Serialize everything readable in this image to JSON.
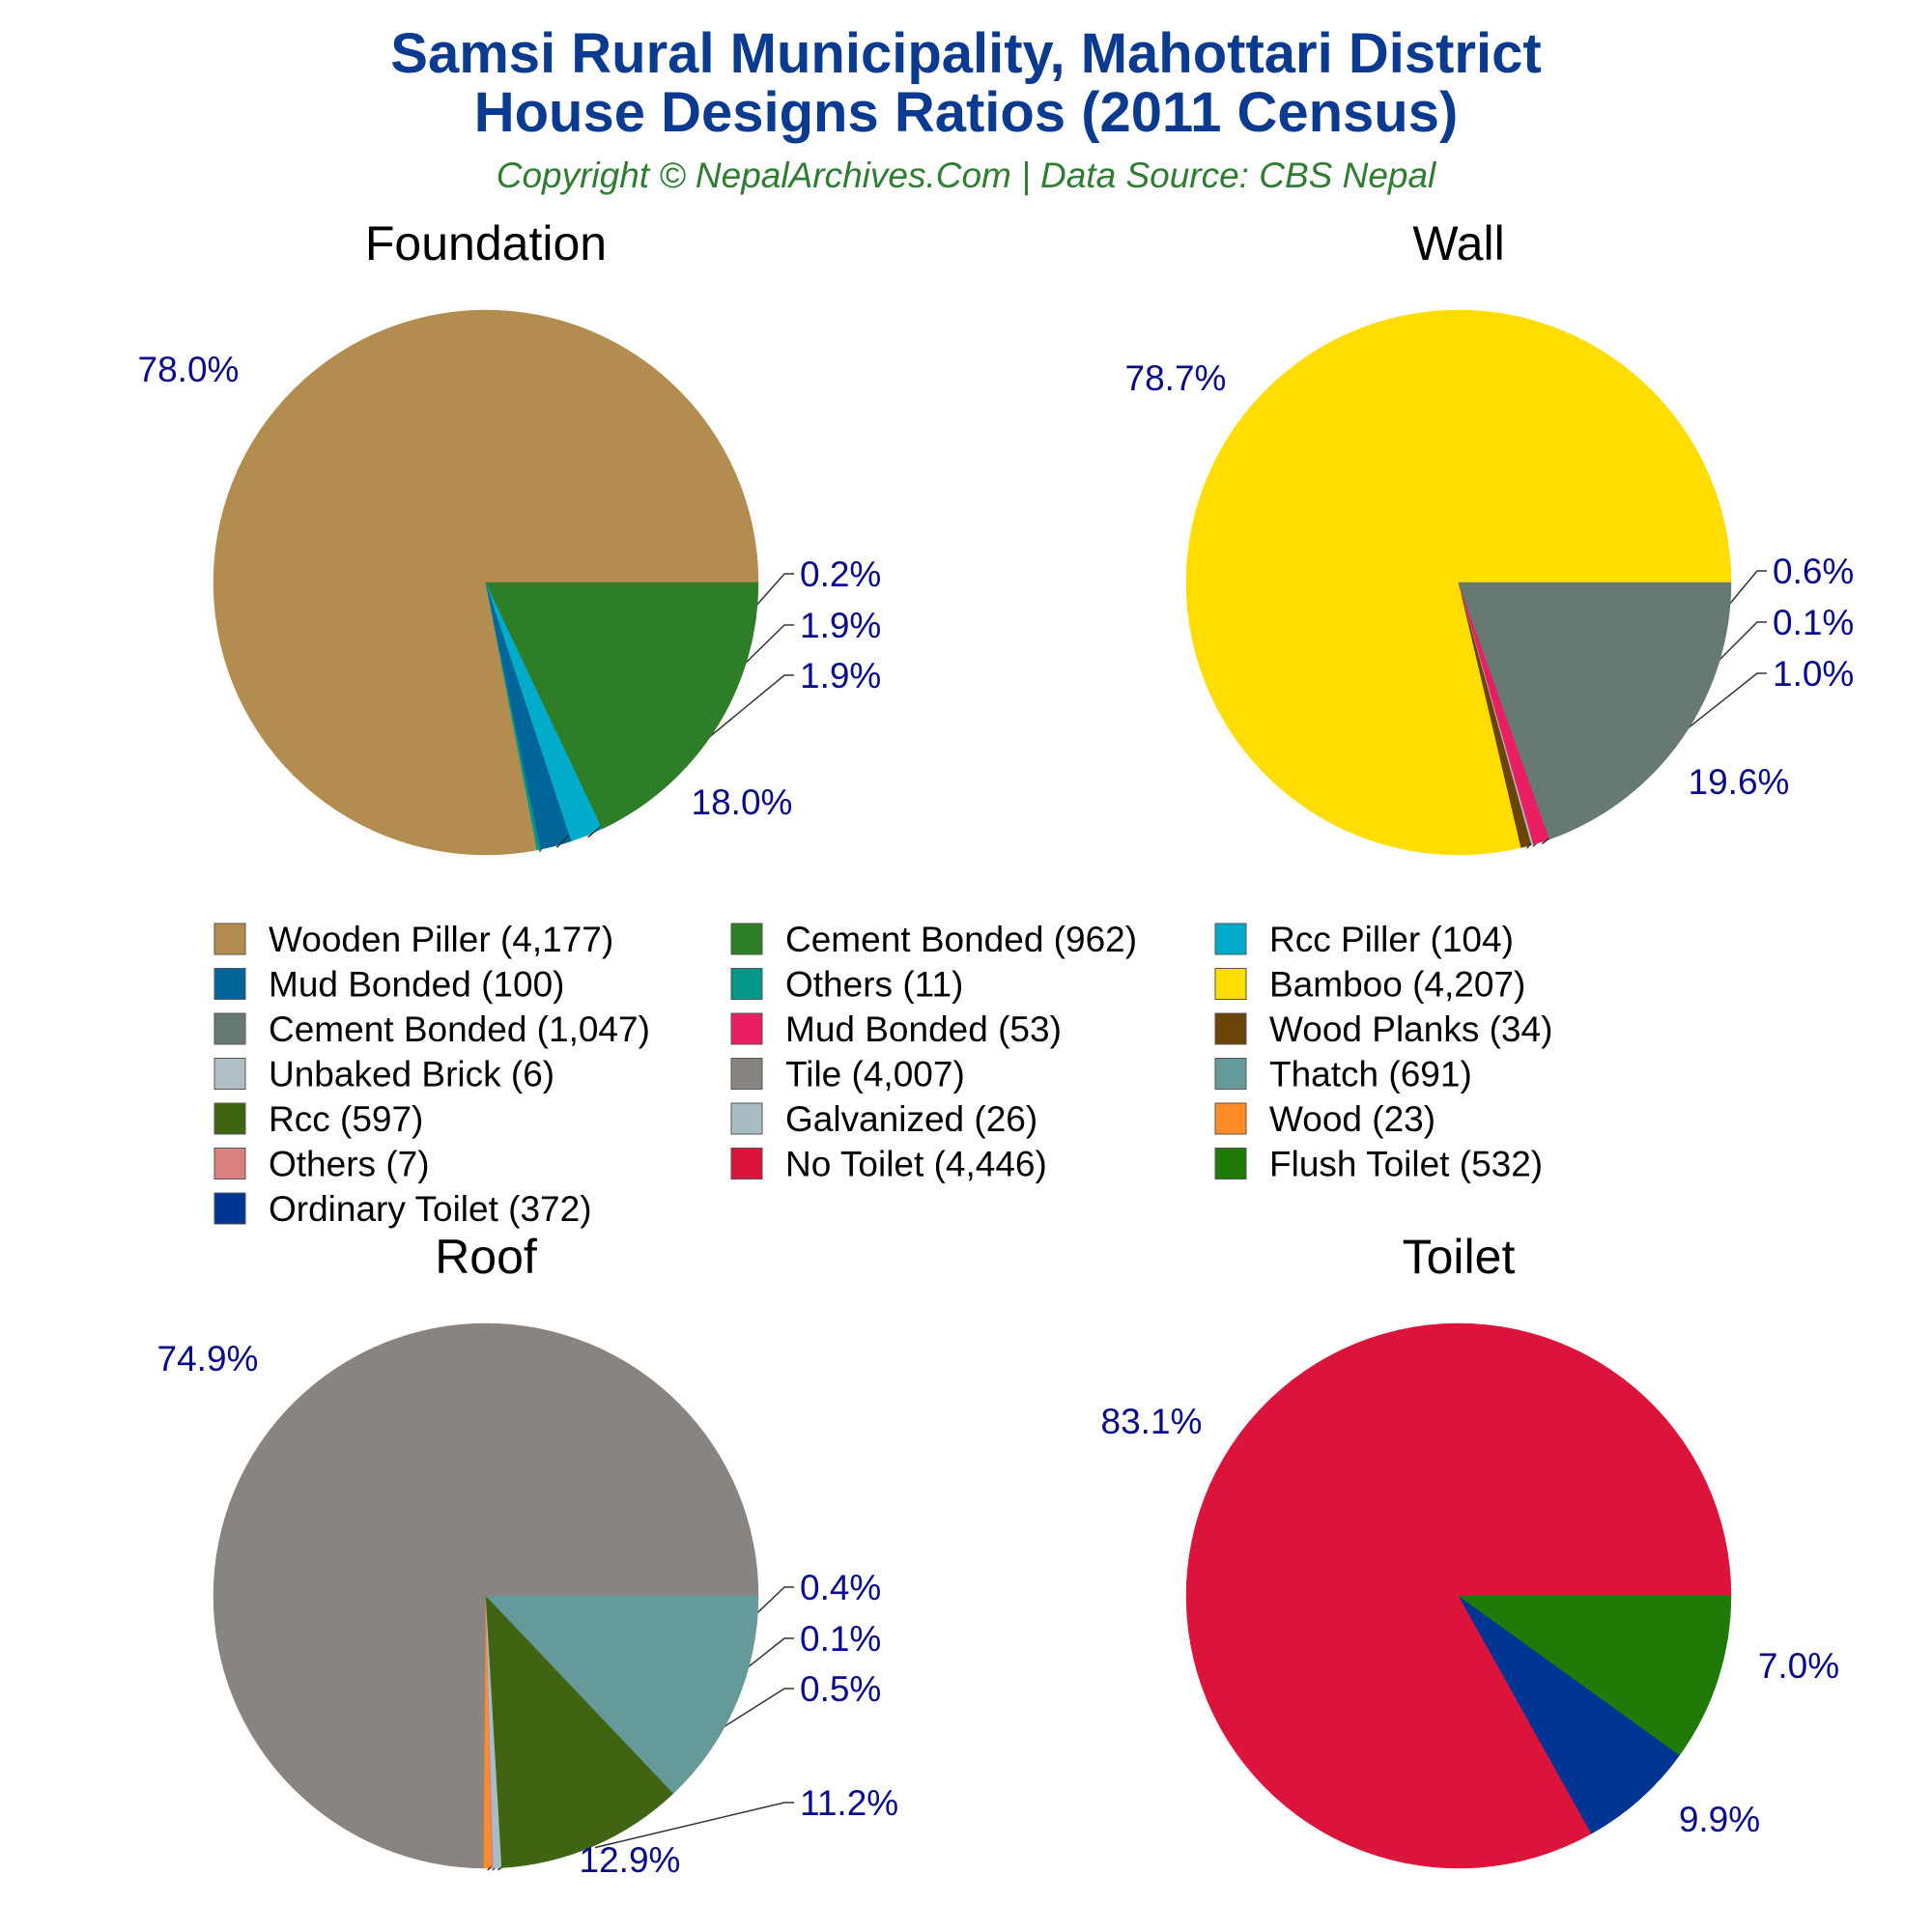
{
  "header": {
    "title_line1": "Samsi Rural Municipality, Mahottari District",
    "title_line2": "House Designs Ratios (2011 Census)",
    "subtitle": "Copyright © NepalArchives.Com | Data Source: CBS Nepal"
  },
  "chart_data": [
    {
      "type": "pie",
      "title": "Foundation",
      "slices": [
        {
          "label": "Wooden Piller",
          "value": 4177,
          "pct": "78.0%",
          "color": "#b38c4f"
        },
        {
          "label": "Others",
          "value": 11,
          "pct": "0.2%",
          "color": "#009688"
        },
        {
          "label": "Mud Bonded",
          "value": 100,
          "pct": "1.9%",
          "color": "#006699"
        },
        {
          "label": "Rcc Piller",
          "value": 104,
          "pct": "1.9%",
          "color": "#00acc9"
        },
        {
          "label": "Cement Bonded",
          "value": 962,
          "pct": "18.0%",
          "color": "#2e7d27"
        }
      ]
    },
    {
      "type": "pie",
      "title": "Wall",
      "slices": [
        {
          "label": "Bamboo",
          "value": 4207,
          "pct": "78.7%",
          "color": "#ffdd00"
        },
        {
          "label": "Wood Planks",
          "value": 34,
          "pct": "0.6%",
          "color": "#6b4508"
        },
        {
          "label": "Unbaked Brick",
          "value": 6,
          "pct": "0.1%",
          "color": "#b0bec5"
        },
        {
          "label": "Mud Bonded",
          "value": 53,
          "pct": "1.0%",
          "color": "#e91e63"
        },
        {
          "label": "Cement Bonded",
          "value": 1047,
          "pct": "19.6%",
          "color": "#667a72"
        }
      ]
    },
    {
      "type": "pie",
      "title": "Roof",
      "slices": [
        {
          "label": "Tile",
          "value": 4007,
          "pct": "74.9%",
          "color": "#8a8480"
        },
        {
          "label": "Wood",
          "value": 23,
          "pct": "0.4%",
          "color": "#ff8c26"
        },
        {
          "label": "Others",
          "value": 7,
          "pct": "0.1%",
          "color": "#d98080"
        },
        {
          "label": "Galvanized",
          "value": 26,
          "pct": "0.5%",
          "color": "#a8bcc4"
        },
        {
          "label": "Rcc",
          "value": 597,
          "pct": "11.2%",
          "color": "#3f6512"
        },
        {
          "label": "Thatch",
          "value": 691,
          "pct": "12.9%",
          "color": "#669999"
        }
      ]
    },
    {
      "type": "pie",
      "title": "Toilet",
      "slices": [
        {
          "label": "No Toilet",
          "value": 4446,
          "pct": "83.1%",
          "color": "#dc143c"
        },
        {
          "label": "Ordinary Toilet",
          "value": 372,
          "pct": "7.0%",
          "color": "#003594"
        },
        {
          "label": "Flush Toilet",
          "value": 532,
          "pct": "9.9%",
          "color": "#1f7a08"
        }
      ]
    }
  ],
  "legend": [
    {
      "label": "Wooden Piller (4,177)",
      "color": "#b38c4f"
    },
    {
      "label": "Cement Bonded (962)",
      "color": "#2e7d27"
    },
    {
      "label": "Rcc Piller (104)",
      "color": "#00acc9"
    },
    {
      "label": "Mud Bonded (100)",
      "color": "#006699"
    },
    {
      "label": "Others (11)",
      "color": "#009688"
    },
    {
      "label": "Bamboo (4,207)",
      "color": "#ffdd00"
    },
    {
      "label": "Cement Bonded (1,047)",
      "color": "#667a72"
    },
    {
      "label": "Mud Bonded (53)",
      "color": "#e91e63"
    },
    {
      "label": "Wood Planks (34)",
      "color": "#6b4508"
    },
    {
      "label": "Unbaked Brick (6)",
      "color": "#b0bec5"
    },
    {
      "label": "Tile (4,007)",
      "color": "#8a8480"
    },
    {
      "label": "Thatch (691)",
      "color": "#669999"
    },
    {
      "label": "Rcc (597)",
      "color": "#3f6512"
    },
    {
      "label": "Galvanized (26)",
      "color": "#a8bcc4"
    },
    {
      "label": "Wood (23)",
      "color": "#ff8c26"
    },
    {
      "label": "Others (7)",
      "color": "#d98080"
    },
    {
      "label": "No Toilet (4,446)",
      "color": "#dc143c"
    },
    {
      "label": "Flush Toilet (532)",
      "color": "#1f7a08"
    },
    {
      "label": "Ordinary Toilet (372)",
      "color": "#003594"
    }
  ]
}
